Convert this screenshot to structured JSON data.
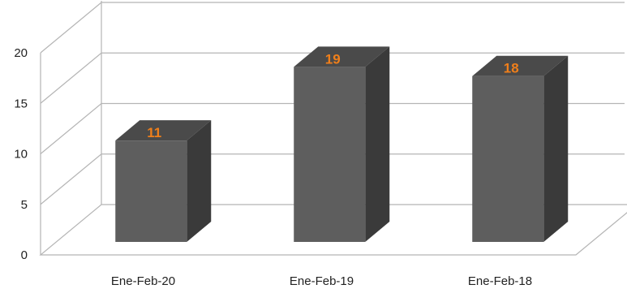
{
  "chart_data": {
    "type": "bar",
    "categories": [
      "Ene-Feb-20",
      "Ene-Feb-19",
      "Ene-Feb-18"
    ],
    "values": [
      11,
      19,
      18
    ],
    "title": "",
    "xlabel": "",
    "ylabel": "",
    "ylim": [
      0,
      20
    ],
    "yticks": [
      0,
      5,
      10,
      15,
      20
    ],
    "grid": true,
    "legend": "none",
    "style": "3d-column"
  },
  "colors": {
    "bar_front": "#5e5e5e",
    "bar_side": "#3a3a3a",
    "bar_top": "#4a4a4a",
    "data_label": "#f07f1a",
    "gridline": "#b5b5b5"
  }
}
